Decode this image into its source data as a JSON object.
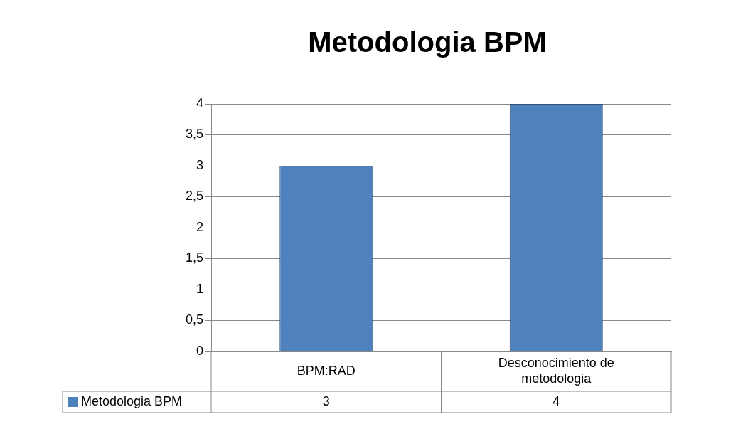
{
  "chart_data": {
    "type": "bar",
    "title": "Metodologia BPM",
    "categories": [
      "BPM:RAD",
      "Desconocimiento de metodologia"
    ],
    "series": [
      {
        "name": "Metodologia BPM",
        "color": "#4f81bd",
        "values": [
          3,
          4
        ]
      }
    ],
    "ylim": [
      0,
      4
    ],
    "yticks": [
      0,
      {
        "value": 0.5,
        "label": "0,5"
      },
      1,
      {
        "value": 1.5,
        "label": "1,5"
      },
      2,
      {
        "value": 2.5,
        "label": "2,5"
      },
      3,
      {
        "value": 3.5,
        "label": "3,5"
      },
      4
    ],
    "grid": "y",
    "legend": "bottom",
    "data_labels": true
  }
}
